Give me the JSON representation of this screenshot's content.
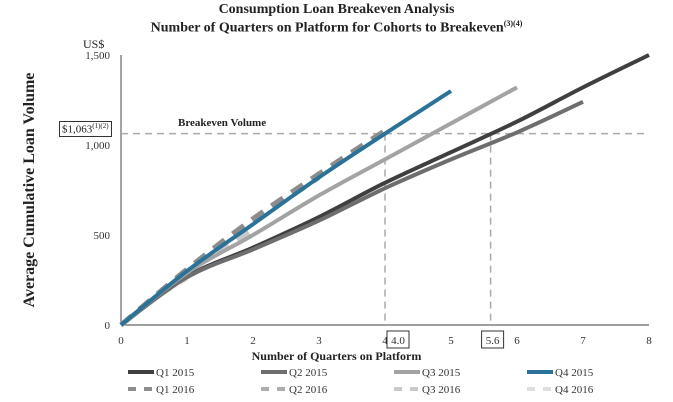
{
  "chart_data": {
    "type": "line",
    "title": "Consumption Loan Breakeven Analysis",
    "subtitle": "Number of Quarters on Platform for Cohorts to Breakeven",
    "subtitle_sup": "(3)(4)",
    "xlabel": "Number of Quarters on Platform",
    "ylabel": "Average Cumulative Loan Volume",
    "yunit": "US$",
    "xlim": [
      0,
      8
    ],
    "ylim": [
      0,
      1500
    ],
    "xticks": [
      "0",
      "1",
      "2",
      "3",
      "4",
      "5",
      "6",
      "7",
      "8"
    ],
    "yticks": [
      {
        "v": 0,
        "label": "0"
      },
      {
        "v": 500,
        "label": "500"
      },
      {
        "v": 1000,
        "label": "1,000"
      },
      {
        "v": 1500,
        "label": "1,500"
      }
    ],
    "breakeven": {
      "value": 1063,
      "label": "Breakeven Volume",
      "value_label": "$1,063",
      "value_sup": "(1)(2)"
    },
    "markers": [
      {
        "x": 4.0,
        "label": "4.0"
      },
      {
        "x": 5.6,
        "label": "5.6"
      }
    ],
    "legend_position": "bottom",
    "series": [
      {
        "name": "Q1 2015",
        "color": "#3f3f3f",
        "dashed": false,
        "x": [
          0,
          1,
          2,
          3,
          4,
          5,
          6,
          7,
          8
        ],
        "y": [
          0,
          270,
          430,
          600,
          790,
          960,
          1130,
          1320,
          1500
        ]
      },
      {
        "name": "Q2 2015",
        "color": "#6e6e6e",
        "dashed": false,
        "x": [
          0,
          1,
          2,
          3,
          4,
          5,
          6,
          7
        ],
        "y": [
          0,
          265,
          420,
          580,
          760,
          920,
          1070,
          1240
        ]
      },
      {
        "name": "Q3 2015",
        "color": "#a3a3a3",
        "dashed": false,
        "x": [
          0,
          1,
          2,
          3,
          4,
          5,
          6
        ],
        "y": [
          0,
          290,
          500,
          720,
          920,
          1120,
          1320
        ]
      },
      {
        "name": "Q4 2015",
        "color": "#2b7298",
        "dashed": false,
        "x": [
          0,
          1,
          2,
          3,
          4,
          5
        ],
        "y": [
          0,
          300,
          560,
          820,
          1063,
          1300
        ]
      },
      {
        "name": "Q1 2016",
        "color": "#8c8c8c",
        "dashed": true,
        "x": [
          0,
          1,
          2,
          3,
          4
        ],
        "y": [
          0,
          310,
          590,
          840,
          1080
        ]
      },
      {
        "name": "Q2 2016",
        "color": "#adadad",
        "dashed": true,
        "x": [
          0,
          1,
          2,
          3
        ],
        "y": [
          0,
          305,
          570,
          820
        ]
      },
      {
        "name": "Q3 2016",
        "color": "#c9c9c9",
        "dashed": true,
        "x": [
          0,
          1,
          2
        ],
        "y": [
          0,
          290,
          530
        ]
      },
      {
        "name": "Q4 2016",
        "color": "#dedede",
        "dashed": true,
        "x": [
          0,
          0.6,
          1
        ],
        "y": [
          0,
          170,
          260
        ]
      }
    ]
  }
}
